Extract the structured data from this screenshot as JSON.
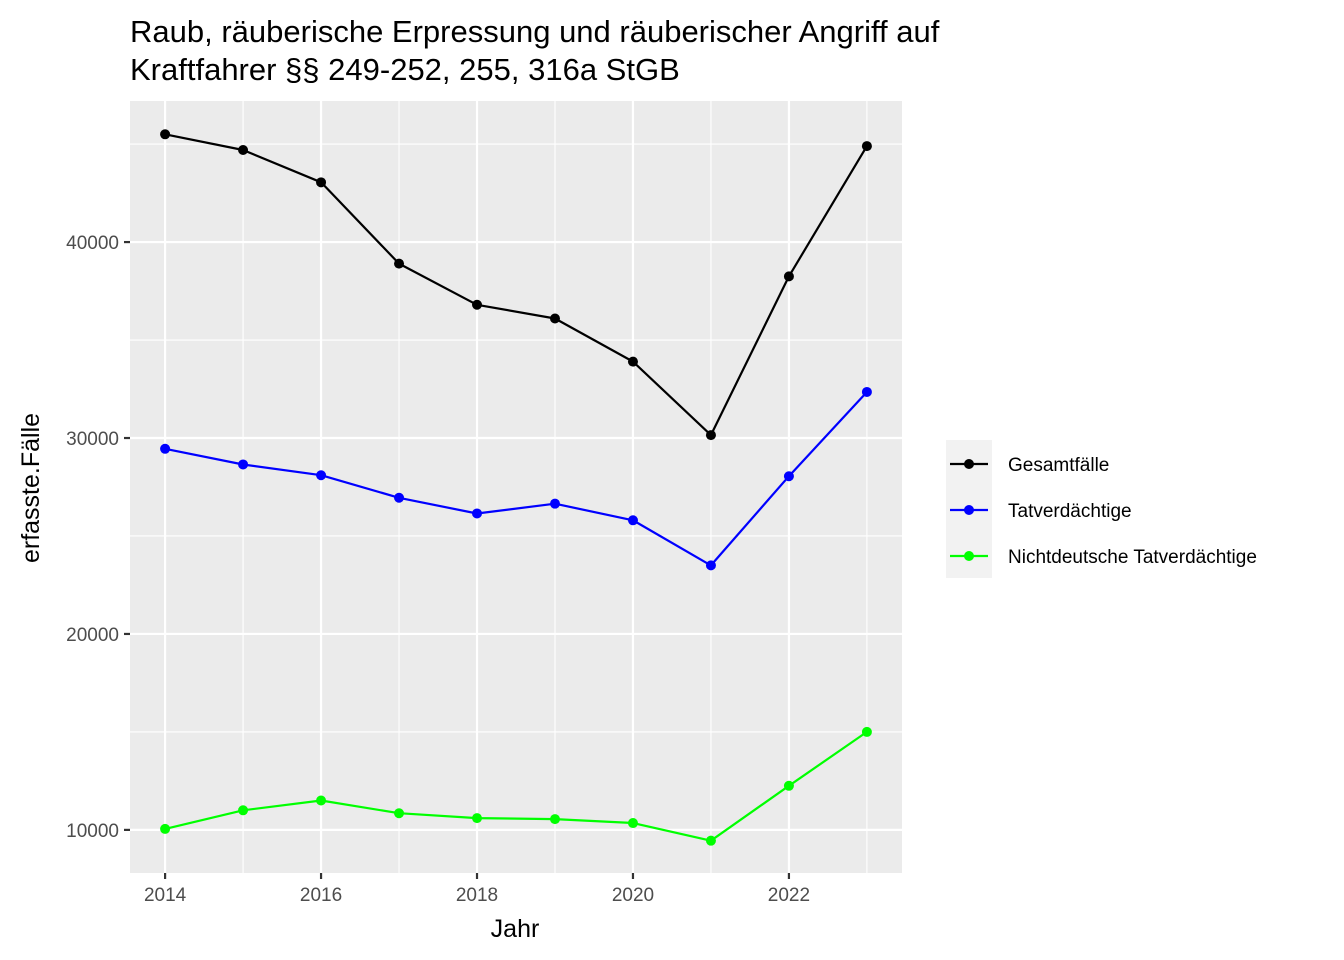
{
  "chart_data": {
    "type": "line",
    "title": "Raub, räuberische Erpressung und räuberischer Angriff auf",
    "subtitle": "Kraftfahrer §§ 249-252, 255, 316a StGB",
    "xlabel": "Jahr",
    "ylabel": "erfasste.Fälle",
    "x": [
      2014,
      2015,
      2016,
      2017,
      2018,
      2019,
      2020,
      2021,
      2022,
      2023
    ],
    "xlim": [
      2013.55,
      2023.45
    ],
    "ylim": [
      7800,
      47200
    ],
    "x_ticks": [
      "2014",
      "2016",
      "2018",
      "2020",
      "2022"
    ],
    "y_ticks": [
      "10000",
      "20000",
      "30000",
      "40000"
    ],
    "grid": true,
    "legend_position": "right",
    "series": [
      {
        "name": "Gesamtfälle",
        "color": "#000000",
        "values": [
          45500,
          44700,
          43050,
          38900,
          36800,
          36100,
          33900,
          30150,
          38250,
          44900
        ]
      },
      {
        "name": "Tatverdächtige",
        "color": "#0000ff",
        "values": [
          29450,
          28650,
          28100,
          26950,
          26150,
          26650,
          25800,
          23500,
          28050,
          32350
        ]
      },
      {
        "name": "Nichtdeutsche Tatverdächtige",
        "color": "#00ff00",
        "values": [
          10050,
          11000,
          11500,
          10850,
          10600,
          10550,
          10350,
          9450,
          12250,
          15000
        ]
      }
    ]
  }
}
